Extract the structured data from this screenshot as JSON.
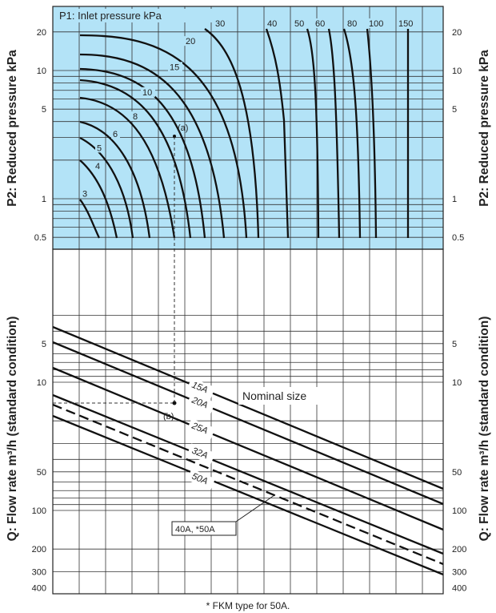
{
  "chart_data": [
    {
      "type": "line",
      "panel": "upper",
      "title": "P1: Inlet pressure kPa",
      "ylabel": "P2: Reduced pressure kPa",
      "yscale": "log",
      "ylim": [
        0.4,
        27
      ],
      "yticks": [
        "20",
        "10",
        "5",
        "1",
        "0.5"
      ],
      "grid": true,
      "background": "#b3e3f7",
      "series": [
        {
          "name": "3",
          "label_p2": 1.1
        },
        {
          "name": "4",
          "label_p2": 1.8
        },
        {
          "name": "5",
          "label_p2": 2.5
        },
        {
          "name": "6",
          "label_p2": 3.2
        },
        {
          "name": "8",
          "label_p2": 4.4
        },
        {
          "name": "10",
          "label_p2": 6.8
        },
        {
          "name": "15",
          "label_p2": 10.7
        },
        {
          "name": "20",
          "label_p2": 17
        },
        {
          "name": "30",
          "label_p2": 25
        },
        {
          "name": "40",
          "label_p2": 25
        },
        {
          "name": "50",
          "label_p2": 25
        },
        {
          "name": "60",
          "label_p2": 25
        },
        {
          "name": "80",
          "label_p2": 25
        },
        {
          "name": "100",
          "label_p2": 25
        },
        {
          "name": "150",
          "label_p2": 25
        }
      ],
      "annotations": [
        "(a)"
      ]
    },
    {
      "type": "line",
      "panel": "lower",
      "ylabel": "Q: Flow rate m³/h (standard condition)",
      "yscale": "log",
      "ylim": [
        2,
        400
      ],
      "yticks": [
        "5",
        "10",
        "50",
        "100",
        "200",
        "300",
        "400"
      ],
      "grid": true,
      "legend_title": "Nominal size",
      "series": [
        {
          "name": "15A",
          "style": "solid"
        },
        {
          "name": "20A",
          "style": "solid"
        },
        {
          "name": "25A",
          "style": "solid"
        },
        {
          "name": "32A",
          "style": "solid"
        },
        {
          "name": "40A, *50A",
          "style": "dashed"
        },
        {
          "name": "50A",
          "style": "solid"
        }
      ],
      "annotations": [
        "(b)"
      ]
    }
  ],
  "footnote": "* FKM type for 50A."
}
